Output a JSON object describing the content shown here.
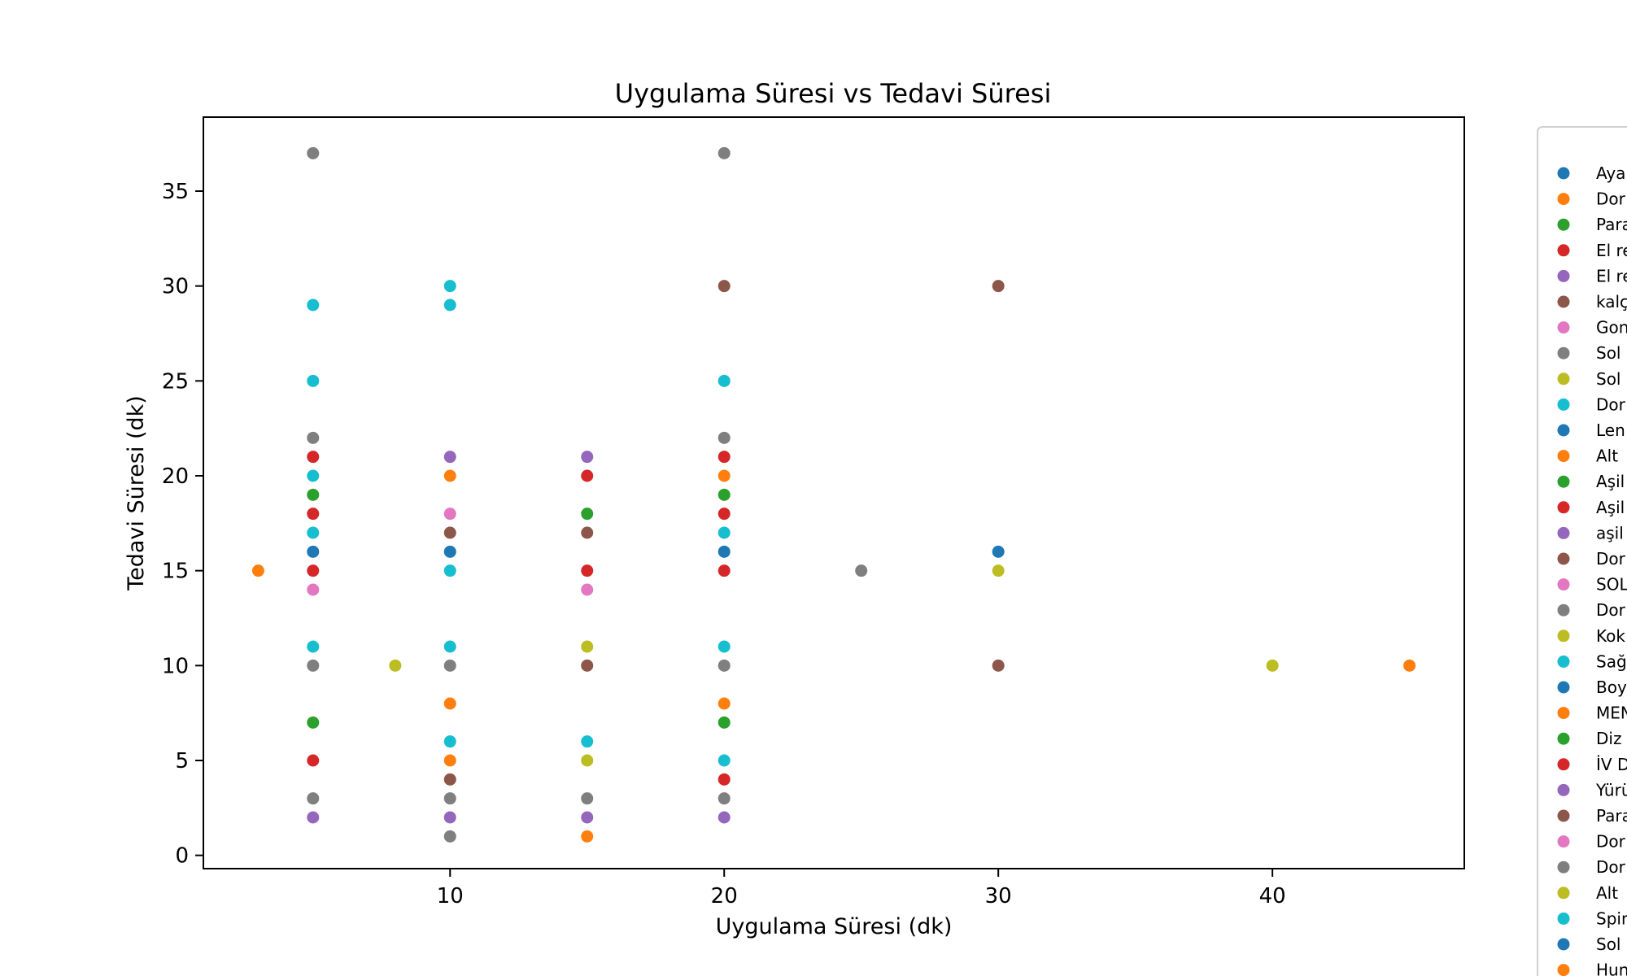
{
  "chart_data": {
    "type": "scatter",
    "title": "Uygulama Süresi vs Tedavi Süresi",
    "xlabel": "Uygulama Süresi (dk)",
    "ylabel": "Tedavi Süresi (dk)",
    "xlim": [
      1,
      47
    ],
    "ylim": [
      -0.7,
      38.9
    ],
    "xticks": [
      10,
      20,
      30,
      40
    ],
    "yticks": [
      0,
      5,
      10,
      15,
      20,
      25,
      30,
      35
    ],
    "grid": false,
    "legend_position": "right (cut off)",
    "series": [
      {
        "name": "Aya",
        "color": "#1f77b4",
        "points": [
          [
            5,
            16
          ],
          [
            10,
            16
          ],
          [
            20,
            16
          ]
        ]
      },
      {
        "name": "Dor",
        "color": "#ff7f0e",
        "points": [
          [
            3,
            15
          ],
          [
            10,
            20
          ],
          [
            10,
            8
          ],
          [
            10,
            5
          ],
          [
            15,
            1
          ],
          [
            20,
            20
          ],
          [
            20,
            8
          ]
        ]
      },
      {
        "name": "Para",
        "color": "#2ca02c",
        "points": [
          [
            5,
            19
          ],
          [
            5,
            7
          ],
          [
            15,
            18
          ],
          [
            20,
            19
          ],
          [
            20,
            7
          ]
        ]
      },
      {
        "name": "El re",
        "color": "#d62728",
        "points": [
          [
            5,
            21
          ],
          [
            5,
            18
          ],
          [
            5,
            15
          ],
          [
            5,
            5
          ],
          [
            15,
            20
          ],
          [
            15,
            15
          ],
          [
            20,
            21
          ],
          [
            20,
            18
          ],
          [
            20,
            15
          ],
          [
            20,
            4
          ]
        ]
      },
      {
        "name": "El re",
        "color": "#9467bd",
        "points": [
          [
            5,
            2
          ],
          [
            10,
            21
          ],
          [
            10,
            2
          ],
          [
            15,
            21
          ],
          [
            15,
            2
          ],
          [
            20,
            2
          ]
        ]
      },
      {
        "name": "kalç",
        "color": "#8c564b",
        "points": [
          [
            10,
            17
          ],
          [
            10,
            4
          ],
          [
            15,
            17
          ],
          [
            15,
            10
          ],
          [
            20,
            30
          ],
          [
            30,
            30
          ],
          [
            30,
            10
          ]
        ]
      },
      {
        "name": "Gon",
        "color": "#e377c2",
        "points": [
          [
            5,
            14
          ],
          [
            10,
            18
          ],
          [
            15,
            14
          ]
        ]
      },
      {
        "name": "Sol",
        "color": "#7f7f7f",
        "points": [
          [
            5,
            37
          ],
          [
            5,
            22
          ],
          [
            5,
            10
          ],
          [
            5,
            3
          ],
          [
            10,
            10
          ],
          [
            10,
            3
          ],
          [
            10,
            1
          ],
          [
            15,
            3
          ],
          [
            20,
            37
          ],
          [
            20,
            22
          ],
          [
            20,
            10
          ],
          [
            20,
            3
          ],
          [
            25,
            15
          ]
        ]
      },
      {
        "name": "Sol",
        "color": "#bcbd22",
        "points": [
          [
            8,
            10
          ],
          [
            15,
            11
          ],
          [
            15,
            5
          ],
          [
            30,
            15
          ],
          [
            40,
            10
          ]
        ]
      },
      {
        "name": "Dor",
        "color": "#17becf",
        "points": [
          [
            5,
            29
          ],
          [
            5,
            25
          ],
          [
            5,
            20
          ],
          [
            5,
            17
          ],
          [
            5,
            11
          ],
          [
            10,
            30
          ],
          [
            10,
            29
          ],
          [
            10,
            15
          ],
          [
            10,
            11
          ],
          [
            10,
            6
          ],
          [
            15,
            6
          ],
          [
            20,
            25
          ],
          [
            20,
            17
          ],
          [
            20,
            11
          ],
          [
            20,
            5
          ]
        ]
      },
      {
        "name": "Len",
        "color": "#1f77b4",
        "points": [
          [
            30,
            16
          ]
        ]
      },
      {
        "name": "Alt",
        "color": "#ff7f0e",
        "points": [
          [
            45,
            10
          ]
        ]
      },
      {
        "name": "Aşil",
        "color": "#2ca02c",
        "points": []
      },
      {
        "name": "Aşil",
        "color": "#d62728",
        "points": []
      },
      {
        "name": "aşil",
        "color": "#9467bd",
        "points": []
      },
      {
        "name": "Dor",
        "color": "#8c564b",
        "points": []
      },
      {
        "name": "SOL",
        "color": "#e377c2",
        "points": []
      },
      {
        "name": "Dor",
        "color": "#7f7f7f",
        "points": []
      },
      {
        "name": "Kok",
        "color": "#bcbd22",
        "points": []
      },
      {
        "name": "Sağ",
        "color": "#17becf",
        "points": []
      },
      {
        "name": "Boy",
        "color": "#1f77b4",
        "points": []
      },
      {
        "name": "MEN",
        "color": "#ff7f0e",
        "points": []
      },
      {
        "name": "Diz",
        "color": "#2ca02c",
        "points": []
      },
      {
        "name": "İV D",
        "color": "#d62728",
        "points": []
      },
      {
        "name": "Yürü",
        "color": "#9467bd",
        "points": []
      },
      {
        "name": "Para",
        "color": "#8c564b",
        "points": []
      },
      {
        "name": "Dor",
        "color": "#e377c2",
        "points": []
      },
      {
        "name": "Dor",
        "color": "#7f7f7f",
        "points": []
      },
      {
        "name": "Alt",
        "color": "#bcbd22",
        "points": []
      },
      {
        "name": "Spin",
        "color": "#17becf",
        "points": []
      },
      {
        "name": "Sol",
        "color": "#1f77b4",
        "points": []
      },
      {
        "name": "Hun",
        "color": "#ff7f0e",
        "points": []
      }
    ]
  }
}
